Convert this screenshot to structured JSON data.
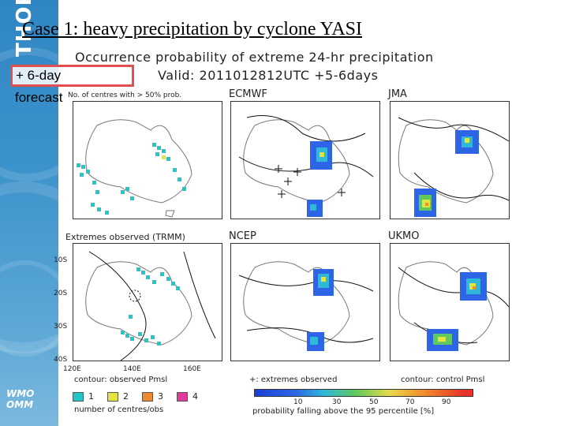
{
  "slide": {
    "title": "Case 1: heavy precipitation by cyclone YASI",
    "label_line1": "+ 6-day",
    "label_line2": "forecast",
    "brand_vertical": "THORPEX",
    "logo_line1": "WMO",
    "logo_line2": "OMM"
  },
  "figure": {
    "header_line1": "Occurrence probability of extreme 24-hr precipitation",
    "header_line2": "Valid: 2011012812UTC +5-6days",
    "topleft_subtitle": "No. of centres with > 50% prob.",
    "panels": {
      "ecmwf": "ECMWF",
      "jma": "JMA",
      "observed": "Extremes observed (TRMM)",
      "ncep": "NCEP",
      "ukmo": "UKMO"
    },
    "lat_labels": [
      "10S",
      "20S",
      "30S",
      "40S"
    ],
    "lon_labels": [
      "120E",
      "140E",
      "160E"
    ],
    "left_legend": {
      "title": "contour: observed Pmsl",
      "items": [
        {
          "label": "1",
          "color": "#22c7c7"
        },
        {
          "label": "2",
          "color": "#e4e440"
        },
        {
          "label": "3",
          "color": "#f08a30"
        },
        {
          "label": "4",
          "color": "#e23a9b"
        }
      ],
      "caption": "number of centres/obs"
    },
    "right_legend": {
      "title_left": "+: extremes observed",
      "title_right": "contour: control Pmsl",
      "ticks": [
        "10",
        "30",
        "50",
        "70",
        "90"
      ],
      "caption": "probability falling above the 95 percentile [%]"
    }
  }
}
